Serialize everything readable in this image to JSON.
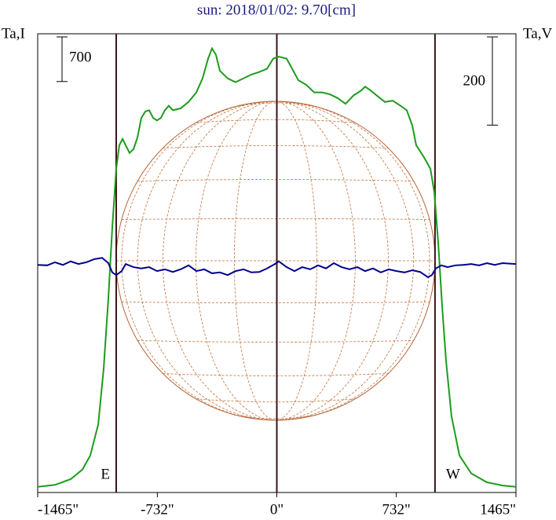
{
  "chart_data": {
    "type": "line",
    "title": "sun: 2018/01/02: 9.70[cm]",
    "ylabel": "Ta,I",
    "y2label": "Ta,V",
    "xlim": [
      -1465,
      1465
    ],
    "xticks": [
      {
        "value": -1465,
        "label": "-1465\""
      },
      {
        "value": -732,
        "label": "-732\""
      },
      {
        "value": 0,
        "label": "0\""
      },
      {
        "value": 732,
        "label": "732\""
      },
      {
        "value": 1465,
        "label": "1465\""
      }
    ],
    "ylim": [
      0,
      7200
    ],
    "y2lim": [
      -520,
      520
    ],
    "scale_bar": 700,
    "y2_scale_bar": 200,
    "limbs": [
      {
        "value": -984,
        "label": "E"
      },
      {
        "value": 969,
        "label": "W"
      }
    ],
    "series": [
      {
        "name": "Ta,I",
        "color": "#1c9c1c",
        "x": [
          -1465,
          -1359,
          -1263,
          -1191,
          -1143,
          -1094,
          -1061,
          -1032,
          -1008,
          -984,
          -965,
          -945,
          -926,
          -902,
          -878,
          -854,
          -830,
          -806,
          -782,
          -758,
          -734,
          -710,
          -686,
          -662,
          -637,
          -589,
          -541,
          -493,
          -455,
          -421,
          -397,
          -373,
          -349,
          -301,
          -253,
          -204,
          -156,
          -108,
          -60,
          -22,
          12,
          60,
          94,
          132,
          180,
          229,
          277,
          325,
          373,
          421,
          469,
          517,
          541,
          575,
          613,
          662,
          710,
          758,
          796,
          830,
          854,
          902,
          941,
          965,
          989,
          1013,
          1037,
          1070,
          1119,
          1191,
          1287,
          1383,
          1465
        ],
        "values": [
          90,
          120,
          210,
          360,
          580,
          1070,
          1940,
          3050,
          4160,
          5080,
          5450,
          5550,
          5450,
          5330,
          5390,
          5570,
          5880,
          5980,
          6000,
          5880,
          5840,
          5880,
          6000,
          6070,
          6000,
          6030,
          6130,
          6280,
          6500,
          6810,
          6970,
          6870,
          6620,
          6500,
          6440,
          6500,
          6560,
          6600,
          6650,
          6810,
          6840,
          6810,
          6650,
          6470,
          6400,
          6280,
          6280,
          6250,
          6190,
          6100,
          6230,
          6310,
          6370,
          6310,
          6230,
          6130,
          6150,
          6070,
          6000,
          5760,
          5450,
          5260,
          5080,
          4710,
          3910,
          2920,
          2060,
          1200,
          580,
          300,
          160,
          110,
          90
        ]
      },
      {
        "name": "Ta,V",
        "color": "#000090",
        "axis": "y2",
        "x": [
          -1465,
          -1407,
          -1359,
          -1311,
          -1263,
          -1215,
          -1167,
          -1119,
          -1070,
          -1032,
          -1008,
          -984,
          -950,
          -926,
          -878,
          -830,
          -782,
          -734,
          -686,
          -637,
          -589,
          -541,
          -493,
          -445,
          -397,
          -349,
          -301,
          -253,
          -204,
          -156,
          -108,
          -60,
          -12,
          12,
          60,
          108,
          156,
          204,
          253,
          301,
          349,
          397,
          445,
          493,
          541,
          589,
          637,
          686,
          734,
          782,
          830,
          878,
          926,
          950,
          974,
          1008,
          1046,
          1094,
          1143,
          1191,
          1239,
          1287,
          1335,
          1383,
          1465
        ],
        "values": [
          -4,
          -5,
          2,
          -4,
          4,
          -2,
          2,
          9,
          12,
          0,
          -21,
          -27,
          -18,
          -2,
          -9,
          -12,
          -9,
          -18,
          -14,
          -20,
          -14,
          -5,
          -18,
          -14,
          -23,
          -21,
          -27,
          -18,
          -14,
          -21,
          -20,
          -12,
          -2,
          4,
          -9,
          -18,
          -9,
          -14,
          -5,
          -12,
          0,
          -9,
          -14,
          -9,
          -18,
          -12,
          -21,
          -14,
          -18,
          -21,
          -16,
          -20,
          -32,
          -27,
          -12,
          -5,
          -9,
          -5,
          -4,
          -2,
          -5,
          0,
          -4,
          0,
          -2
        ]
      }
    ]
  }
}
